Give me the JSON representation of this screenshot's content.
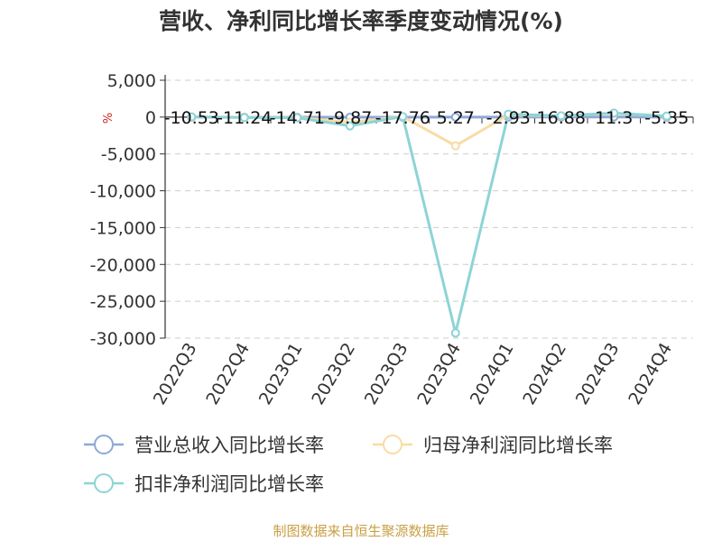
{
  "source": "制图数据来自恒生聚源数据库",
  "unit_label": "%",
  "chart_data": {
    "type": "line",
    "title": "营收、净利同比增长率季度变动情况(%)",
    "categories": [
      "2022Q3",
      "2022Q4",
      "2023Q1",
      "2023Q2",
      "2023Q3",
      "2023Q4",
      "2024Q1",
      "2024Q2",
      "2024Q3",
      "2024Q4"
    ],
    "ylim": [
      -30000,
      5000
    ],
    "yticks": [
      5000,
      0,
      -5000,
      -10000,
      -15000,
      -20000,
      -25000,
      -30000
    ],
    "ytick_labels": [
      "5,000",
      "0",
      "-5,000",
      "-10,000",
      "-15,000",
      "-20,000",
      "-25,000",
      "-30,000"
    ],
    "grid": true,
    "legend_position": "bottom-left",
    "series": [
      {
        "name": "营业总收入同比增长率",
        "color": "#8fa8d8",
        "values": [
          -10.53,
          -11.24,
          -14.71,
          -9.87,
          -17.76,
          5.27,
          -2.93,
          16.88,
          11.3,
          -5.35
        ],
        "labels": [
          "-10.53",
          "-11.24",
          "-14.71",
          "-9.87",
          "-17.76",
          "5.27",
          "-2.93",
          "16.88",
          "11.3",
          "-5.35"
        ]
      },
      {
        "name": "归母净利润同比增长率",
        "color": "#f8dca4",
        "values": [
          20,
          -40,
          -60,
          -700,
          60,
          -3900,
          300,
          150,
          500,
          120
        ]
      },
      {
        "name": "扣非净利润同比增长率",
        "color": "#8dd4d6",
        "values": [
          30,
          -60,
          -90,
          -1200,
          70,
          -29300,
          400,
          180,
          550,
          140
        ]
      }
    ]
  }
}
